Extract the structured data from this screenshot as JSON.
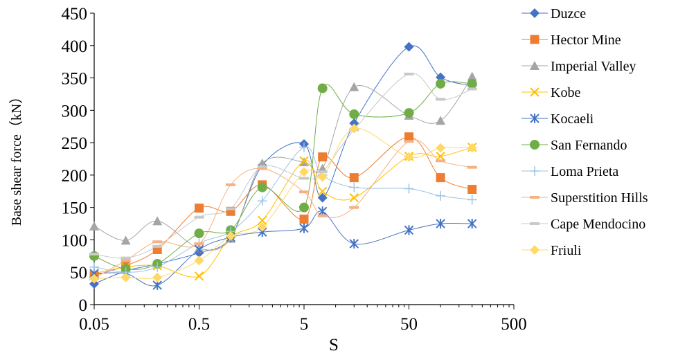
{
  "chart_data": {
    "type": "line",
    "xlabel": "S",
    "ylabel": "Base shear force（kN）",
    "x_scale": "log",
    "xlim": [
      0.05,
      500
    ],
    "ylim": [
      0,
      450
    ],
    "x_ticks": [
      "0.05",
      "0.5",
      "5",
      "50",
      "500"
    ],
    "y_ticks": [
      "0",
      "50",
      "100",
      "150",
      "200",
      "250",
      "300",
      "350",
      "400",
      "450"
    ],
    "grid": false,
    "legend_position": "right",
    "x": [
      0.05,
      0.1,
      0.2,
      0.5,
      1,
      2,
      5,
      7.5,
      15,
      50,
      100,
      200
    ],
    "series": [
      {
        "name": "Duzce",
        "color": "#4472C4",
        "marker": "diamond",
        "values": [
          32,
          52,
          63,
          80,
          104,
          215,
          248,
          165,
          280,
          398,
          351,
          338
        ]
      },
      {
        "name": "Hector Mine",
        "color": "#ED7D31",
        "marker": "square",
        "values": [
          45,
          60,
          85,
          149,
          144,
          185,
          132,
          228,
          196,
          259,
          196,
          178
        ]
      },
      {
        "name": "Imperial Valley",
        "color": "#A5A5A5",
        "marker": "triangle",
        "values": [
          121,
          99,
          129,
          87,
          102,
          218,
          220,
          210,
          336,
          292,
          284,
          352
        ]
      },
      {
        "name": "Kobe",
        "color": "#FFC000",
        "marker": "x",
        "values": [
          48,
          58,
          60,
          44,
          104,
          130,
          222,
          175,
          165,
          229,
          229,
          243
        ]
      },
      {
        "name": "Kocaeli",
        "color": "#4472C4",
        "marker": "star",
        "values": [
          48,
          48,
          30,
          85,
          104,
          112,
          118,
          144,
          94,
          115,
          125,
          125
        ]
      },
      {
        "name": "San Fernando",
        "color": "#70AD47",
        "marker": "circle",
        "values": [
          75,
          55,
          63,
          110,
          115,
          181,
          150,
          334,
          294,
          296,
          341,
          341
        ]
      },
      {
        "name": "Loma Prieta",
        "color": "#9DC3E6",
        "marker": "plus",
        "values": [
          58,
          50,
          58,
          95,
          113,
          160,
          243,
          200,
          181,
          179,
          168,
          162
        ]
      },
      {
        "name": "Superstition Hills",
        "color": "#F4B183",
        "marker": "dash",
        "values": [
          41,
          68,
          97,
          94,
          185,
          210,
          174,
          137,
          150,
          252,
          222,
          212
        ]
      },
      {
        "name": "Cape Mendocino",
        "color": "#C9C9C9",
        "marker": "dash",
        "values": [
          78,
          72,
          90,
          135,
          148,
          213,
          195,
          205,
          270,
          356,
          317,
          333
        ]
      },
      {
        "name": "Friuli",
        "color": "#FFD966",
        "marker": "diamond",
        "values": [
          40,
          42,
          42,
          68,
          106,
          120,
          205,
          197,
          272,
          228,
          242,
          242
        ]
      }
    ]
  }
}
